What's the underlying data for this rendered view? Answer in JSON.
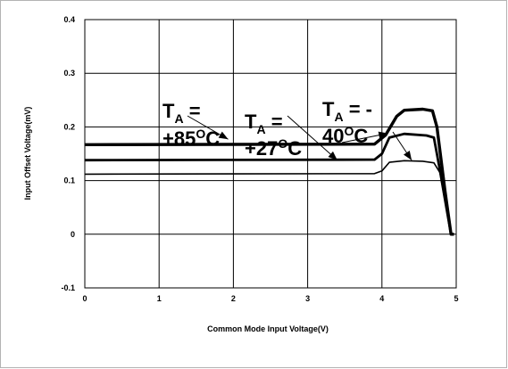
{
  "chart_data": {
    "type": "line",
    "title": "",
    "xlabel": "Common Mode Input Voltage(V)",
    "ylabel": "Input Offset Voltage(mV)",
    "xlim": [
      0,
      5
    ],
    "ylim": [
      -0.1,
      0.4
    ],
    "xticks": [
      "0",
      "1",
      "2",
      "3",
      "4",
      "5"
    ],
    "yticks": [
      "-0.1",
      "0",
      "0.1",
      "0.2",
      "0.3",
      "0.4"
    ],
    "grid": true,
    "series": [
      {
        "name": "TA = +85°C",
        "x": [
          0,
          3.9,
          4.0,
          4.1,
          4.3,
          4.55,
          4.7,
          4.78,
          4.88,
          4.93,
          4.97
        ],
        "y": [
          0.112,
          0.113,
          0.118,
          0.134,
          0.137,
          0.136,
          0.133,
          0.115,
          0.04,
          0.0,
          0.0
        ]
      },
      {
        "name": "TA = +27°C",
        "x": [
          0,
          3.9,
          4.0,
          4.1,
          4.3,
          4.6,
          4.7,
          4.78,
          4.88,
          4.93,
          4.97
        ],
        "y": [
          0.138,
          0.139,
          0.15,
          0.18,
          0.187,
          0.184,
          0.18,
          0.12,
          0.04,
          0.0,
          0.0
        ]
      },
      {
        "name": "TA = -40°C",
        "x": [
          0,
          3.9,
          4.05,
          4.2,
          4.3,
          4.55,
          4.68,
          4.74,
          4.85,
          4.93,
          4.97
        ],
        "y": [
          0.167,
          0.168,
          0.185,
          0.22,
          0.231,
          0.233,
          0.23,
          0.2,
          0.08,
          0.0,
          0.0
        ]
      }
    ],
    "annotations": [
      {
        "label": "TA = +85°C",
        "parts": {
          "T": "T",
          "sub": "A",
          "eq": " =",
          "line2": "+85",
          "deg": "O",
          "unit": "C"
        }
      },
      {
        "label": "TA = +27°C",
        "parts": {
          "T": "T",
          "sub": "A",
          "eq": " =",
          "line2": "+27",
          "deg": "O",
          "unit": "C"
        }
      },
      {
        "label": "TA = -40°C",
        "parts": {
          "T": "T",
          "sub": "A",
          "eq": " = -",
          "line2": "40",
          "deg": "O",
          "unit": "C"
        }
      }
    ]
  }
}
